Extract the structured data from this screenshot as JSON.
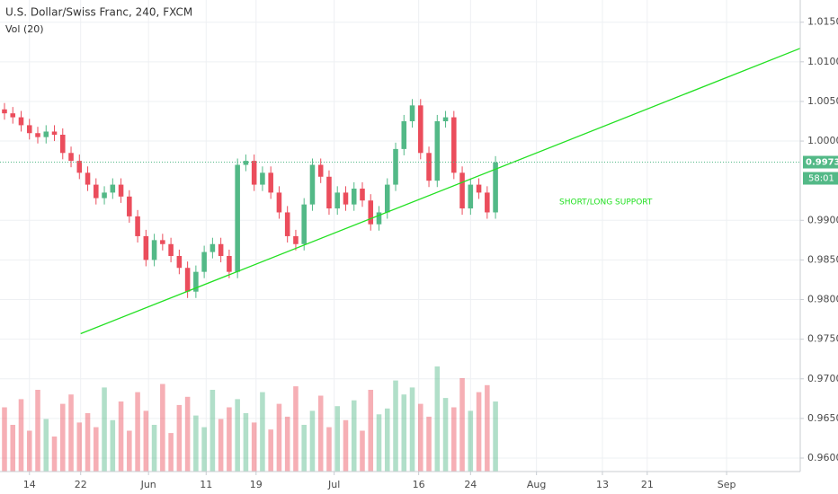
{
  "chart_data": {
    "type": "candlestick",
    "title": "U.S. Dollar/Swiss Franc, 240, FXCM",
    "volume_title": "Vol (20)",
    "annotation": "SHORT/LONG SUPPORT",
    "up_color": "#53b987",
    "down_color": "#eb4d5c",
    "trend_color": "#22e022",
    "grid": true,
    "xlim": [
      0,
      125
    ],
    "ylim": [
      0.9583,
      1.0178
    ],
    "vlim": [
      0,
      100
    ],
    "xticks": [
      {
        "value": 4.6,
        "label": "14"
      },
      {
        "value": 12.6,
        "label": "22"
      },
      {
        "value": 23.2,
        "label": "Jun"
      },
      {
        "value": 32.2,
        "label": "11"
      },
      {
        "value": 40.0,
        "label": "19"
      },
      {
        "value": 52.2,
        "label": "Jul"
      },
      {
        "value": 65.4,
        "label": "16"
      },
      {
        "value": 73.5,
        "label": "24"
      },
      {
        "value": 83.8,
        "label": "Aug"
      },
      {
        "value": 94.1,
        "label": "13"
      },
      {
        "value": 101.1,
        "label": "21"
      },
      {
        "value": 113.5,
        "label": "Sep"
      }
    ],
    "yticks": [
      {
        "value": 0.96,
        "label": "0.96000"
      },
      {
        "value": 0.965,
        "label": "0.96500"
      },
      {
        "value": 0.97,
        "label": "0.97000"
      },
      {
        "value": 0.975,
        "label": "0.97500"
      },
      {
        "value": 0.98,
        "label": "0.98000"
      },
      {
        "value": 0.985,
        "label": "0.98500"
      },
      {
        "value": 0.99,
        "label": "0.99000"
      },
      {
        "value": 1.0,
        "label": "1.00000"
      },
      {
        "value": 1.005,
        "label": "1.00500"
      },
      {
        "value": 1.01,
        "label": "1.01000"
      },
      {
        "value": 1.015,
        "label": "1.01500"
      }
    ],
    "last_price": {
      "value": 0.99734,
      "label": "0.99734"
    },
    "countdown": "58:01",
    "trendline": {
      "x": [
        12.6,
        125
      ],
      "y": [
        0.9757,
        1.0117
      ]
    },
    "x": [
      0.7,
      2.0,
      3.3,
      4.6,
      5.9,
      7.2,
      8.5,
      9.8,
      11.1,
      12.4,
      13.7,
      15.0,
      16.3,
      17.6,
      18.9,
      20.2,
      21.5,
      22.8,
      24.1,
      25.4,
      26.7,
      28.0,
      29.3,
      30.6,
      31.9,
      33.2,
      34.5,
      35.8,
      37.1,
      38.4,
      39.7,
      41.0,
      42.3,
      43.6,
      44.9,
      46.2,
      47.5,
      48.8,
      50.1,
      51.4,
      52.7,
      54.0,
      55.3,
      56.6,
      57.9,
      59.2,
      60.5,
      61.8,
      63.1,
      64.4,
      65.7,
      67.0,
      68.3,
      69.6,
      70.9,
      72.2,
      73.5,
      74.8,
      76.1,
      77.4
    ],
    "open": [
      1.004,
      1.0035,
      1.003,
      1.002,
      1.001,
      1.0005,
      1.0012,
      1.0008,
      0.9985,
      0.9975,
      0.996,
      0.9945,
      0.9928,
      0.9935,
      0.9945,
      0.993,
      0.9905,
      0.988,
      0.985,
      0.9875,
      0.987,
      0.9855,
      0.984,
      0.981,
      0.9835,
      0.986,
      0.987,
      0.9855,
      0.9835,
      0.997,
      0.9975,
      0.9945,
      0.996,
      0.9935,
      0.991,
      0.988,
      0.987,
      0.992,
      0.997,
      0.9955,
      0.9915,
      0.9935,
      0.992,
      0.994,
      0.9925,
      0.9895,
      0.991,
      0.9945,
      0.999,
      1.0025,
      1.0045,
      0.9985,
      0.995,
      1.0025,
      1.003,
      0.996,
      0.9915,
      0.9945,
      0.9935,
      0.991
    ],
    "high": [
      1.0048,
      1.0043,
      1.0038,
      1.0028,
      1.0018,
      1.002,
      1.002,
      1.0016,
      0.9993,
      0.9983,
      0.9968,
      0.9953,
      0.9943,
      0.9953,
      0.9953,
      0.9938,
      0.9913,
      0.9888,
      0.9883,
      0.9883,
      0.9878,
      0.9863,
      0.9848,
      0.9843,
      0.9868,
      0.9878,
      0.9878,
      0.9863,
      0.9978,
      0.9983,
      0.9983,
      0.9968,
      0.9968,
      0.9943,
      0.9918,
      0.9888,
      0.9928,
      0.9978,
      0.9978,
      0.9963,
      0.9943,
      0.9943,
      0.9948,
      0.9948,
      0.9933,
      0.9918,
      0.9953,
      0.9998,
      1.0033,
      1.0053,
      1.0053,
      0.9993,
      1.0033,
      1.0038,
      1.0038,
      0.9968,
      0.9953,
      0.9953,
      0.9943,
      0.9981
    ],
    "low": [
      1.0027,
      1.0022,
      1.0012,
      1.0002,
      0.9997,
      0.9997,
      1.0,
      0.9977,
      0.9967,
      0.9952,
      0.9937,
      0.992,
      0.992,
      0.9927,
      0.9922,
      0.9897,
      0.9872,
      0.9842,
      0.9842,
      0.9862,
      0.9847,
      0.9832,
      0.9802,
      0.9802,
      0.9827,
      0.9852,
      0.9847,
      0.9827,
      0.9827,
      0.9962,
      0.9937,
      0.9937,
      0.9927,
      0.9902,
      0.9872,
      0.9862,
      0.9862,
      0.9912,
      0.9947,
      0.9907,
      0.9907,
      0.9912,
      0.9912,
      0.9917,
      0.9887,
      0.9887,
      0.9902,
      0.9937,
      0.9982,
      1.0017,
      0.9977,
      0.9942,
      0.9942,
      1.0017,
      0.9952,
      0.9907,
      0.9907,
      0.9927,
      0.9902,
      0.9902
    ],
    "close": [
      1.0035,
      1.003,
      1.002,
      1.001,
      1.0005,
      1.0012,
      1.0008,
      0.9985,
      0.9975,
      0.996,
      0.9945,
      0.9928,
      0.9935,
      0.9945,
      0.993,
      0.9905,
      0.988,
      0.985,
      0.9875,
      0.987,
      0.9855,
      0.984,
      0.981,
      0.9835,
      0.986,
      0.987,
      0.9855,
      0.9835,
      0.997,
      0.9975,
      0.9945,
      0.996,
      0.9935,
      0.991,
      0.988,
      0.987,
      0.992,
      0.997,
      0.9955,
      0.9915,
      0.9935,
      0.992,
      0.994,
      0.9925,
      0.9895,
      0.991,
      0.9945,
      0.999,
      1.0025,
      1.0045,
      0.9985,
      0.995,
      1.0025,
      1.003,
      0.996,
      0.9915,
      0.9945,
      0.9935,
      0.991,
      0.9973
    ],
    "volume": [
      55,
      40,
      62,
      35,
      70,
      45,
      30,
      58,
      66,
      42,
      50,
      38,
      72,
      44,
      60,
      35,
      68,
      52,
      40,
      75,
      33,
      57,
      64,
      48,
      38,
      70,
      45,
      55,
      62,
      50,
      42,
      68,
      36,
      58,
      47,
      73,
      40,
      52,
      65,
      38,
      56,
      44,
      61,
      35,
      70,
      49,
      54,
      78,
      66,
      72,
      58,
      47,
      90,
      63,
      55,
      80,
      52,
      68,
      74,
      60
    ]
  }
}
